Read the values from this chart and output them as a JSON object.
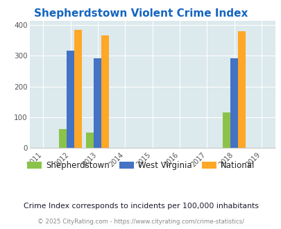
{
  "title": "Shepherdstown Violent Crime Index",
  "years": [
    2011,
    2012,
    2013,
    2014,
    2015,
    2016,
    2017,
    2018,
    2019
  ],
  "data_years": [
    2012,
    2013,
    2018
  ],
  "shepherdstown": [
    60,
    50,
    115
  ],
  "west_virginia": [
    317,
    292,
    292
  ],
  "national": [
    385,
    367,
    380
  ],
  "bar_width": 0.28,
  "colors": {
    "shepherdstown": "#8bc34a",
    "west_virginia": "#4472c4",
    "national": "#ffa726"
  },
  "legend_labels": [
    "Shepherdstown",
    "West Virginia",
    "National"
  ],
  "legend_colors": [
    "#8bc34a",
    "#4472c4",
    "#ffa726"
  ],
  "ylim": [
    0,
    415
  ],
  "yticks": [
    0,
    100,
    200,
    300,
    400
  ],
  "background_color": "#dce9ed",
  "title_color": "#1565c0",
  "subtitle": "Crime Index corresponds to incidents per 100,000 inhabitants",
  "footer": "© 2025 CityRating.com - https://www.cityrating.com/crime-statistics/",
  "subtitle_color": "#1a1a2e",
  "footer_color": "#888888",
  "grid_color": "#ffffff",
  "axis_label_color": "#555555"
}
